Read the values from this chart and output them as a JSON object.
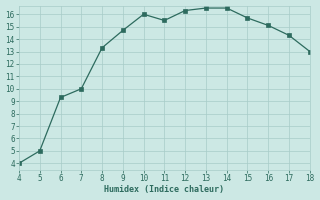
{
  "x": [
    4,
    5,
    6,
    7,
    8,
    9,
    10,
    11,
    12,
    13,
    14,
    15,
    16,
    17,
    18
  ],
  "y": [
    4,
    5,
    9.3,
    10,
    13.3,
    14.7,
    16.0,
    15.5,
    16.3,
    16.5,
    16.5,
    15.7,
    15.1,
    14.3,
    13.0
  ],
  "xlim": [
    4,
    18
  ],
  "ylim": [
    4,
    16
  ],
  "xticks": [
    4,
    5,
    6,
    7,
    8,
    9,
    10,
    11,
    12,
    13,
    14,
    15,
    16,
    17,
    18
  ],
  "yticks": [
    4,
    5,
    6,
    7,
    8,
    9,
    10,
    11,
    12,
    13,
    14,
    15,
    16
  ],
  "xlabel": "Humidex (Indice chaleur)",
  "line_color": "#2d6b5e",
  "marker_color": "#2d6b5e",
  "bg_color": "#cce8e4",
  "grid_color": "#a8ccc8",
  "font_color": "#2d6b5e"
}
